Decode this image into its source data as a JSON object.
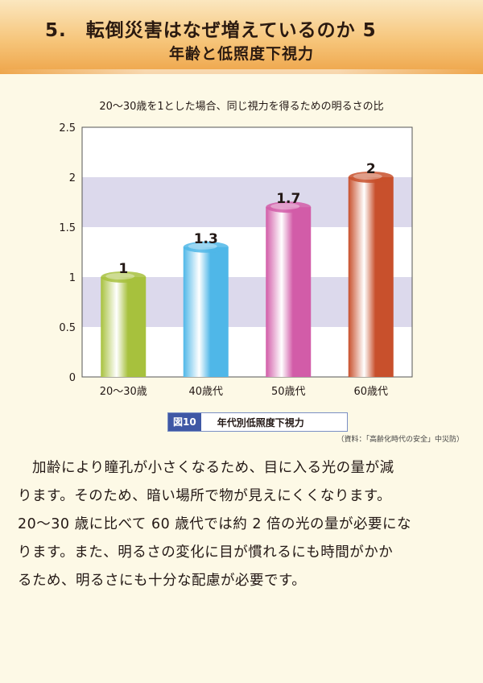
{
  "header": {
    "title": "5.　転倒災害はなぜ増えているのか 5",
    "subtitle": "年齢と低照度下視力"
  },
  "chart_caption": "20〜30歳を1とした場合、同じ視力を得るための明るさの比",
  "chart_data": {
    "type": "bar",
    "title": "20〜30歳を1とした場合、同じ視力を得るための明るさの比",
    "categories": [
      "20〜30歳",
      "40歳代",
      "50歳代",
      "60歳代"
    ],
    "values": [
      1,
      1.3,
      1.7,
      2
    ],
    "value_labels": [
      "1",
      "1.3",
      "1.7",
      "2"
    ],
    "ylim": [
      0,
      2.5
    ],
    "yticks": [
      "0",
      "0.5",
      "1",
      "1.5",
      "2",
      "2.5"
    ],
    "xlabel": "",
    "ylabel": "",
    "bar_colors": [
      "#a7c13d",
      "#4fb7e8",
      "#d25ca8",
      "#c8502c"
    ],
    "band_color": "#dcd9ec",
    "grid": false
  },
  "figure": {
    "number": "図10",
    "title": "年代別低照度下視力"
  },
  "source": "（資料：「高齢化時代の安全」中災防）",
  "body_lines": [
    "　加齢により瞳孔が小さくなるため、目に入る光の量が減",
    "ります。そのため、暗い場所で物が見えにくくなります。",
    "20〜30 歳に比べて 60 歳代では約 2 倍の光の量が必要にな",
    "ります。また、明るさの変化に目が慣れるにも時間がかか",
    "るため、明るさにも十分な配慮が必要です。"
  ]
}
